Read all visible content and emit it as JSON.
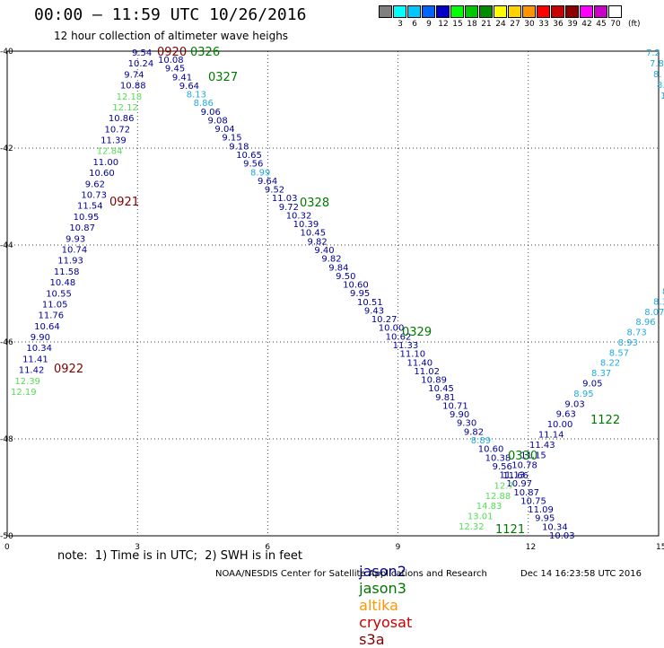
{
  "header": {
    "title": "00:00 – 11:59 UTC 10/26/2016",
    "subtitle": "12 hour collection of altimeter wave heighs"
  },
  "colorbar": {
    "cells": [
      {
        "color": "#808080",
        "label": ""
      },
      {
        "color": "#00ffff",
        "label": "3"
      },
      {
        "color": "#00c8ff",
        "label": "6"
      },
      {
        "color": "#0064ff",
        "label": "9"
      },
      {
        "color": "#0000c8",
        "label": "12"
      },
      {
        "color": "#00ff00",
        "label": "15"
      },
      {
        "color": "#00c800",
        "label": "18"
      },
      {
        "color": "#008c00",
        "label": "21"
      },
      {
        "color": "#ffff00",
        "label": "24"
      },
      {
        "color": "#ffd200",
        "label": "27"
      },
      {
        "color": "#ff9600",
        "label": "30"
      },
      {
        "color": "#ff0000",
        "label": "33"
      },
      {
        "color": "#c80000",
        "label": "36"
      },
      {
        "color": "#8c0000",
        "label": "39"
      },
      {
        "color": "#ff00ff",
        "label": "42"
      },
      {
        "color": "#c800c8",
        "label": "45"
      },
      {
        "color": "#ffffff",
        "label": "70"
      }
    ],
    "unit": "(ft)"
  },
  "axes": {
    "x_ticks": [
      "0",
      "3",
      "6",
      "9",
      "12",
      "15"
    ],
    "y_ticks": [
      "-40",
      "-42",
      "-44",
      "-46",
      "-48",
      "-50"
    ]
  },
  "colors": {
    "jason2": "#000096",
    "jason3": "#007800",
    "altika": "#ff9600",
    "cryosat": "#c80000",
    "s3a": "#800000",
    "light_green": "#55dd55",
    "cyan": "#22aadd",
    "maroon": "#800000"
  },
  "tracks": [
    {
      "points": [
        {
          "v": "12.19",
          "c": "light_green"
        },
        {
          "v": "12.39",
          "c": "light_green"
        },
        {
          "v": "11.42",
          "c": "jason2"
        },
        {
          "v": "11.41",
          "c": "jason2"
        },
        {
          "v": "10.34",
          "c": "jason2"
        },
        {
          "v": "9.90",
          "c": "jason2"
        },
        {
          "v": "10.64",
          "c": "jason2"
        },
        {
          "v": "11.76",
          "c": "jason2"
        },
        {
          "v": "11.05",
          "c": "jason2"
        },
        {
          "v": "10.55",
          "c": "jason2"
        },
        {
          "v": "10.48",
          "c": "jason2"
        },
        {
          "v": "11.58",
          "c": "jason2"
        },
        {
          "v": "11.93",
          "c": "jason2"
        },
        {
          "v": "10.74",
          "c": "jason2"
        },
        {
          "v": "9.93",
          "c": "jason2"
        },
        {
          "v": "10.87",
          "c": "jason2"
        },
        {
          "v": "10.95",
          "c": "jason2"
        },
        {
          "v": "11.54",
          "c": "jason2"
        },
        {
          "v": "10.73",
          "c": "jason2"
        },
        {
          "v": "9.62",
          "c": "jason2"
        },
        {
          "v": "10.60",
          "c": "jason2"
        },
        {
          "v": "11.00",
          "c": "jason2"
        },
        {
          "v": "12.84",
          "c": "light_green"
        },
        {
          "v": "11.39",
          "c": "jason2"
        },
        {
          "v": "10.72",
          "c": "jason2"
        },
        {
          "v": "10.86",
          "c": "jason2"
        },
        {
          "v": "12.12",
          "c": "light_green"
        },
        {
          "v": "12.18",
          "c": "light_green"
        },
        {
          "v": "10.88",
          "c": "jason2"
        },
        {
          "v": "9.74",
          "c": "jason2"
        },
        {
          "v": "10.24",
          "c": "jason2"
        },
        {
          "v": "9.54",
          "c": "jason2"
        }
      ]
    },
    {
      "points": [
        {
          "v": "10.08",
          "c": "jason2"
        },
        {
          "v": "9.45",
          "c": "jason2"
        },
        {
          "v": "9.41",
          "c": "jason2"
        },
        {
          "v": "9.64",
          "c": "jason2"
        },
        {
          "v": "8.13",
          "c": "cyan"
        },
        {
          "v": "8.86",
          "c": "cyan"
        },
        {
          "v": "9.06",
          "c": "jason2"
        },
        {
          "v": "9.08",
          "c": "jason2"
        },
        {
          "v": "9.04",
          "c": "jason2"
        },
        {
          "v": "9.15",
          "c": "jason2"
        },
        {
          "v": "9.18",
          "c": "jason2"
        },
        {
          "v": "10.65",
          "c": "jason2"
        },
        {
          "v": "9.56",
          "c": "jason2"
        },
        {
          "v": "8.99",
          "c": "cyan"
        },
        {
          "v": "9.64",
          "c": "jason2"
        },
        {
          "v": "9.52",
          "c": "jason2"
        },
        {
          "v": "11.03",
          "c": "jason2"
        },
        {
          "v": "9.72",
          "c": "jason2"
        },
        {
          "v": "10.32",
          "c": "jason2"
        },
        {
          "v": "10.39",
          "c": "jason2"
        },
        {
          "v": "10.45",
          "c": "jason2"
        },
        {
          "v": "9.82",
          "c": "jason2"
        },
        {
          "v": "9.40",
          "c": "jason2"
        },
        {
          "v": "9.82",
          "c": "jason2"
        },
        {
          "v": "9.84",
          "c": "jason2"
        },
        {
          "v": "9.50",
          "c": "jason2"
        },
        {
          "v": "10.60",
          "c": "jason2"
        },
        {
          "v": "9.95",
          "c": "jason2"
        },
        {
          "v": "10.51",
          "c": "jason2"
        },
        {
          "v": "9.43",
          "c": "jason2"
        },
        {
          "v": "10.27",
          "c": "jason2"
        },
        {
          "v": "10.00",
          "c": "jason2"
        },
        {
          "v": "10.62",
          "c": "jason2"
        },
        {
          "v": "11.33",
          "c": "jason2"
        },
        {
          "v": "11.10",
          "c": "jason2"
        },
        {
          "v": "11.40",
          "c": "jason2"
        },
        {
          "v": "11.02",
          "c": "jason2"
        },
        {
          "v": "10.89",
          "c": "jason2"
        },
        {
          "v": "10.45",
          "c": "jason2"
        },
        {
          "v": "9.81",
          "c": "jason2"
        },
        {
          "v": "10.71",
          "c": "jason2"
        },
        {
          "v": "9.90",
          "c": "jason2"
        },
        {
          "v": "9.30",
          "c": "jason2"
        },
        {
          "v": "9.82",
          "c": "jason2"
        },
        {
          "v": "8.89",
          "c": "cyan"
        },
        {
          "v": "10.60",
          "c": "jason2"
        },
        {
          "v": "10.38",
          "c": "jason2"
        },
        {
          "v": "9.56",
          "c": "jason2"
        },
        {
          "v": "11.13",
          "c": "jason2"
        },
        {
          "v": "10.97",
          "c": "jason2"
        },
        {
          "v": "10.87",
          "c": "jason2"
        },
        {
          "v": "10.75",
          "c": "jason2"
        },
        {
          "v": "11.09",
          "c": "jason2"
        },
        {
          "v": "9.95",
          "c": "jason2"
        },
        {
          "v": "10.34",
          "c": "jason2"
        },
        {
          "v": "10.03",
          "c": "jason2"
        }
      ]
    },
    {
      "points": [
        {
          "v": "12.32",
          "c": "light_green"
        },
        {
          "v": "13.01",
          "c": "light_green"
        },
        {
          "v": "14.83",
          "c": "light_green"
        },
        {
          "v": "12.88",
          "c": "light_green"
        },
        {
          "v": "12.7",
          "c": "light_green"
        },
        {
          "v": "11.66",
          "c": "jason2"
        },
        {
          "v": "10.78",
          "c": "jason2"
        },
        {
          "v": "11.15",
          "c": "jason2"
        },
        {
          "v": "11.43",
          "c": "jason2"
        },
        {
          "v": "11.14",
          "c": "jason2"
        },
        {
          "v": "10.00",
          "c": "jason2"
        },
        {
          "v": "9.63",
          "c": "jason2"
        },
        {
          "v": "9.03",
          "c": "jason2"
        },
        {
          "v": "8.95",
          "c": "cyan"
        },
        {
          "v": "9.05",
          "c": "jason2"
        },
        {
          "v": "8.37",
          "c": "cyan"
        },
        {
          "v": "8.22",
          "c": "cyan"
        },
        {
          "v": "8.57",
          "c": "cyan"
        },
        {
          "v": "8.93",
          "c": "cyan"
        },
        {
          "v": "8.73",
          "c": "cyan"
        },
        {
          "v": "8.96",
          "c": "cyan"
        },
        {
          "v": "8.07",
          "c": "cyan"
        },
        {
          "v": "8.3",
          "c": "cyan"
        },
        {
          "v": "8.",
          "c": "cyan"
        }
      ]
    },
    {
      "points": [
        {
          "v": "7.2",
          "c": "cyan"
        },
        {
          "v": "7.8",
          "c": "cyan"
        },
        {
          "v": "8.",
          "c": "cyan"
        },
        {
          "v": "8.",
          "c": "cyan"
        },
        {
          "v": "1",
          "c": "cyan"
        }
      ]
    }
  ],
  "passes": [
    {
      "label": "0920",
      "c": "maroon"
    },
    {
      "label": "0326",
      "c": "jason3"
    },
    {
      "label": "0327",
      "c": "jason3"
    },
    {
      "label": "0921",
      "c": "maroon"
    },
    {
      "label": "0328",
      "c": "jason3"
    },
    {
      "label": "0922",
      "c": "maroon"
    },
    {
      "label": "0329",
      "c": "jason3"
    },
    {
      "label": "0330",
      "c": "jason3"
    },
    {
      "label": "1122",
      "c": "jason3"
    },
    {
      "label": "1121",
      "c": "jason3"
    }
  ],
  "footer": {
    "note": "note:  1) Time is in UTC;  2) SWH is in feet",
    "legend": [
      "jason2",
      "jason3",
      "altika",
      "cryosat",
      "s3a"
    ],
    "credit": "NOAA/NESDIS Center for Satellite Applications and Research",
    "stamp": "Dec 14 16:23:58 UTC 2016"
  }
}
